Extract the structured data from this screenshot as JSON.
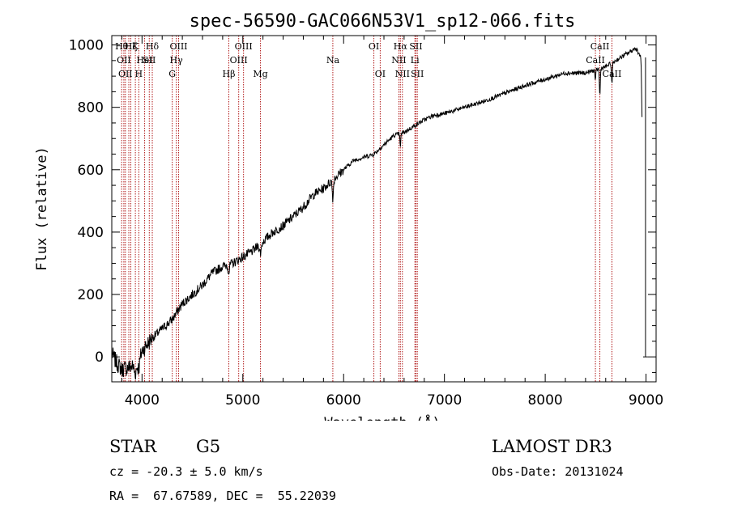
{
  "chart_data": {
    "type": "line",
    "title": "spec-56590-GAC066N53V1_sp12-066.fits",
    "xlabel": "Wavelength (Å)",
    "ylabel": "Flux (relative)",
    "xlim": [
      3700,
      9100
    ],
    "ylim": [
      -80,
      1030
    ],
    "xticks": [
      4000,
      5000,
      6000,
      7000,
      8000,
      9000
    ],
    "yticks": [
      0,
      200,
      400,
      600,
      800,
      1000
    ],
    "series": [
      {
        "name": "flux",
        "x": [
          3700,
          3750,
          3800,
          3850,
          3900,
          3950,
          4000,
          4050,
          4100,
          4200,
          4300,
          4400,
          4500,
          4600,
          4700,
          4800,
          4900,
          5000,
          5100,
          5200,
          5300,
          5400,
          5500,
          5600,
          5700,
          5800,
          5900,
          6000,
          6100,
          6200,
          6300,
          6400,
          6500,
          6600,
          6700,
          6800,
          6900,
          7000,
          7200,
          7400,
          7600,
          7800,
          8000,
          8200,
          8400,
          8600,
          8800,
          8900,
          8950,
          9000
        ],
        "y": [
          10,
          -20,
          -40,
          -35,
          -30,
          0,
          20,
          40,
          60,
          90,
          120,
          170,
          200,
          230,
          270,
          290,
          300,
          320,
          340,
          370,
          400,
          420,
          450,
          480,
          520,
          540,
          570,
          600,
          630,
          640,
          650,
          680,
          710,
          720,
          740,
          760,
          775,
          780,
          800,
          820,
          845,
          870,
          890,
          910,
          910,
          930,
          970,
          990,
          960,
          0
        ]
      }
    ],
    "lines": [
      {
        "x": 3798,
        "label": "Hθ",
        "row": 0
      },
      {
        "x": 3820,
        "label": "OII",
        "row": 1
      },
      {
        "x": 3835,
        "label": "OII",
        "row": 2
      },
      {
        "x": 3869,
        "label": "",
        "row": 2
      },
      {
        "x": 3889,
        "label": "Hζ",
        "row": 0
      },
      {
        "x": 3934,
        "label": "K",
        "row": 0
      },
      {
        "x": 3968,
        "label": "H",
        "row": 2
      },
      {
        "x": 4026,
        "label": "HeI",
        "row": 1
      },
      {
        "x": 4072,
        "label": "SII",
        "row": 1
      },
      {
        "x": 4102,
        "label": "Hδ",
        "row": 0
      },
      {
        "x": 4300,
        "label": "G",
        "row": 2
      },
      {
        "x": 4340,
        "label": "Hγ",
        "row": 1
      },
      {
        "x": 4363,
        "label": "OIII",
        "row": 0
      },
      {
        "x": 4861,
        "label": "Hβ",
        "row": 2
      },
      {
        "x": 4959,
        "label": "OIII",
        "row": 1
      },
      {
        "x": 5007,
        "label": "OIII",
        "row": 0
      },
      {
        "x": 5175,
        "label": "Mg",
        "row": 2
      },
      {
        "x": 5893,
        "label": "Na",
        "row": 1
      },
      {
        "x": 6300,
        "label": "OI",
        "row": 0
      },
      {
        "x": 6363,
        "label": "OI",
        "row": 2
      },
      {
        "x": 6548,
        "label": "NII",
        "row": 1
      },
      {
        "x": 6563,
        "label": "Hα",
        "row": 0
      },
      {
        "x": 6583,
        "label": "NII",
        "row": 2
      },
      {
        "x": 6707,
        "label": "Li",
        "row": 1
      },
      {
        "x": 6717,
        "label": "SII",
        "row": 0
      },
      {
        "x": 6731,
        "label": "SII",
        "row": 2
      },
      {
        "x": 8498,
        "label": "CaII",
        "row": 1
      },
      {
        "x": 8542,
        "label": "CaII",
        "row": 0
      },
      {
        "x": 8662,
        "label": "CaII",
        "row": 2
      }
    ]
  },
  "info": {
    "class": "STAR",
    "subclass": "G5",
    "survey": "LAMOST DR3",
    "cz": "cz = -20.3 ± 5.0 km/s",
    "obs_date": "Obs-Date: 20131024",
    "radec": "RA =  67.67589, DEC =  55.22039"
  }
}
